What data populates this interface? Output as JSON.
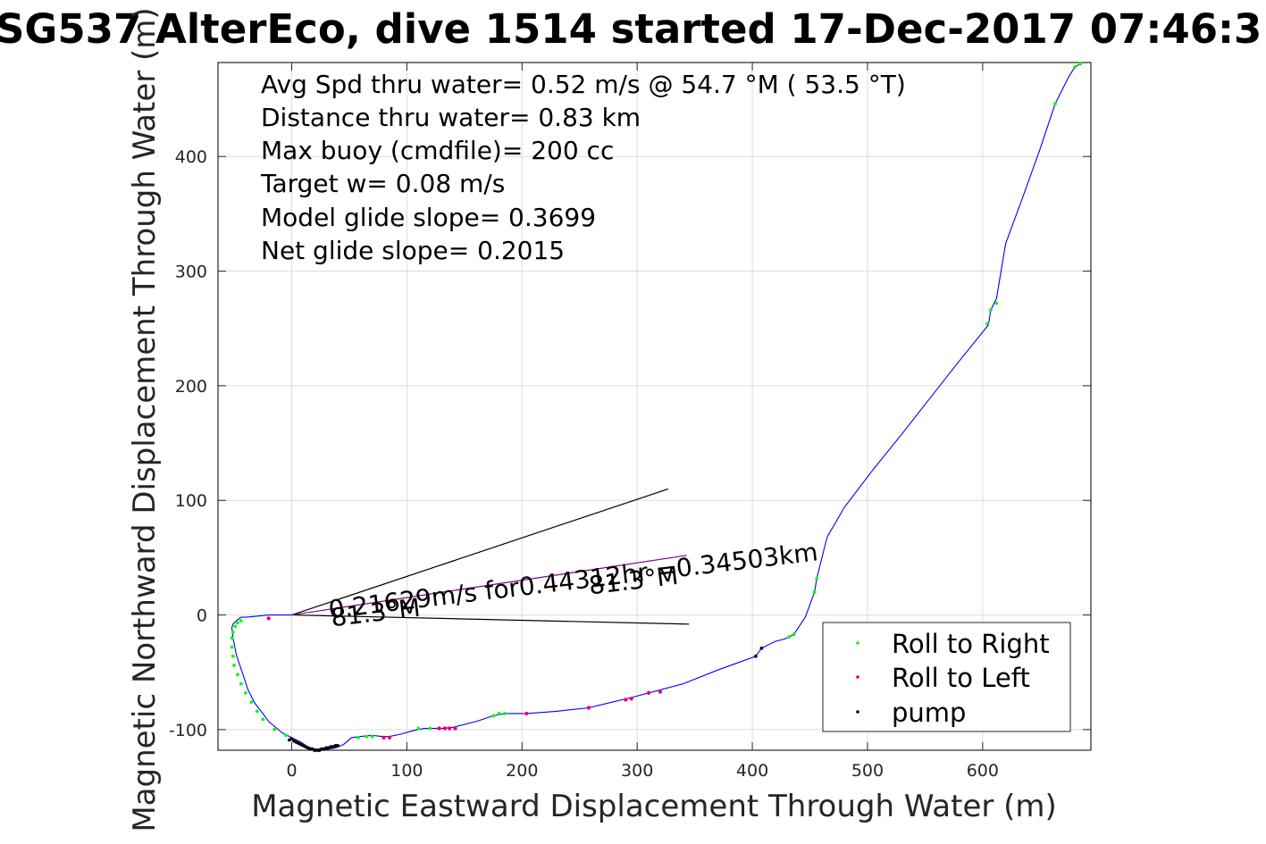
{
  "chart_data": {
    "type": "scatter",
    "title": "SG537 AlterEco, dive 1514 started 17-Dec-2017 07:46:3",
    "xlabel": "Magnetic Eastward Displacement Through Water (m)",
    "ylabel": "Magnetic Northward Displacement Through Water (m)",
    "xlim": [
      -64,
      694
    ],
    "ylim": [
      -118,
      482
    ],
    "xticks": [
      0,
      100,
      200,
      300,
      400,
      500,
      600
    ],
    "yticks": [
      -100,
      0,
      100,
      200,
      300,
      400
    ],
    "grid": true,
    "legend_position": "bottom-right",
    "info_lines": [
      "Avg Spd thru water=  0.52 m/s @  54.7 °M ( 53.5 °T)",
      "Distance thru water=  0.83 km",
      "Max buoy (cmdfile)= 200 cc",
      "Target w= 0.08 m/s",
      "Model glide slope= 0.3699",
      "Net glide slope= 0.2015"
    ],
    "annotations": [
      {
        "text": "0.21629m/s for0.44312hr =0.34503km",
        "x": 33,
        "y": -3,
        "angle_deg": -6.8
      },
      {
        "text": "81.3°M",
        "x": 35,
        "y": -10,
        "angle_deg": -6.8
      },
      {
        "text": "81.3°M",
        "x": 259,
        "y": 18,
        "angle_deg": -6.8
      }
    ],
    "reference_lines": [
      {
        "name": "heading-upper",
        "x": [
          0,
          327
        ],
        "y": [
          0,
          110
        ],
        "color": "#000000"
      },
      {
        "name": "heading-lower",
        "x": [
          0,
          345
        ],
        "y": [
          0,
          -8
        ],
        "color": "#000000"
      },
      {
        "name": "current-vector",
        "x": [
          0,
          343
        ],
        "y": [
          0,
          52
        ],
        "color": "#800080"
      }
    ],
    "series": [
      {
        "name": "",
        "type": "line",
        "color": "#0000ff",
        "x": [
          685,
          680,
          675,
          663,
          650,
          635,
          620,
          612,
          610,
          607,
          605,
          580,
          555,
          530,
          505,
          480,
          465,
          456,
          454,
          446,
          436,
          432,
          428,
          420,
          408,
          403,
          370,
          340,
          310,
          295,
          270,
          258,
          230,
          204,
          185,
          175,
          160,
          140,
          130,
          120,
          115,
          105,
          95,
          85,
          78,
          70,
          60,
          52,
          45,
          38,
          32,
          25,
          20,
          14,
          8,
          0,
          -8,
          -20,
          -25,
          -32,
          -38,
          -43,
          -48,
          -51,
          -52,
          -51,
          -48,
          -44,
          -40,
          -30,
          -20,
          -10,
          0
        ],
        "y": [
          481,
          478,
          470,
          446,
          407,
          365,
          324,
          276,
          272,
          266,
          253,
          222,
          190,
          158,
          127,
          94,
          68,
          32,
          20,
          -2,
          -17,
          -19,
          -21,
          -23,
          -29,
          -36,
          -48,
          -60,
          -68,
          -72,
          -78,
          -81,
          -84,
          -86,
          -86,
          -88,
          -93,
          -98,
          -99,
          -99,
          -99,
          -101,
          -104,
          -106,
          -106,
          -105,
          -106,
          -107,
          -113,
          -116,
          -117,
          -118,
          -117,
          -115,
          -111,
          -107,
          -103,
          -93,
          -86,
          -77,
          -65,
          -50,
          -35,
          -20,
          -11,
          -8,
          -5,
          -2,
          -2,
          -1,
          0,
          0,
          0
        ]
      },
      {
        "name": "Roll to Right",
        "type": "scatter",
        "color": "#00ff00",
        "x": [
          680,
          685,
          663,
          612,
          607,
          604,
          454,
          456,
          436,
          432,
          185,
          180,
          175,
          120,
          110,
          70,
          65,
          58,
          -5,
          -15,
          -25,
          -30,
          -35,
          -40,
          -44,
          -47,
          -50,
          -51,
          -52,
          -52,
          -51,
          -49,
          -47,
          -44
        ],
        "y": [
          478,
          481,
          446,
          272,
          266,
          254,
          20,
          32,
          -17,
          -19,
          -86,
          -86,
          -88,
          -99,
          -99,
          -106,
          -106,
          -107,
          -105,
          -100,
          -91,
          -84,
          -76,
          -68,
          -60,
          -52,
          -44,
          -36,
          -28,
          -20,
          -15,
          -10,
          -7,
          -5
        ]
      },
      {
        "name": "Roll to Left",
        "type": "scatter",
        "color": "#ff0000",
        "x": [
          -20,
          20,
          24,
          80,
          85,
          128,
          133,
          137,
          142,
          204,
          258,
          290,
          295,
          310,
          320
        ],
        "y": [
          -3,
          -118,
          -118,
          -107,
          -107,
          -99,
          -99,
          -99,
          -99,
          -86,
          -81,
          -74,
          -73,
          -68,
          -67
        ],
        "edge_color": "#ff00ff"
      },
      {
        "name": "pump",
        "type": "scatter",
        "color": "#000000",
        "x": [
          0,
          -2,
          2,
          4,
          6,
          8,
          10,
          12,
          14,
          16,
          18,
          20,
          22,
          24,
          26,
          28,
          30,
          32,
          34,
          36,
          38,
          40,
          403,
          408
        ],
        "y": [
          -108,
          -109,
          -110,
          -111,
          -112,
          -113,
          -114,
          -115,
          -116,
          -117,
          -117,
          -118,
          -118,
          -118,
          -117,
          -117,
          -116,
          -116,
          -115,
          -115,
          -114,
          -114,
          -36,
          -29
        ]
      }
    ]
  }
}
